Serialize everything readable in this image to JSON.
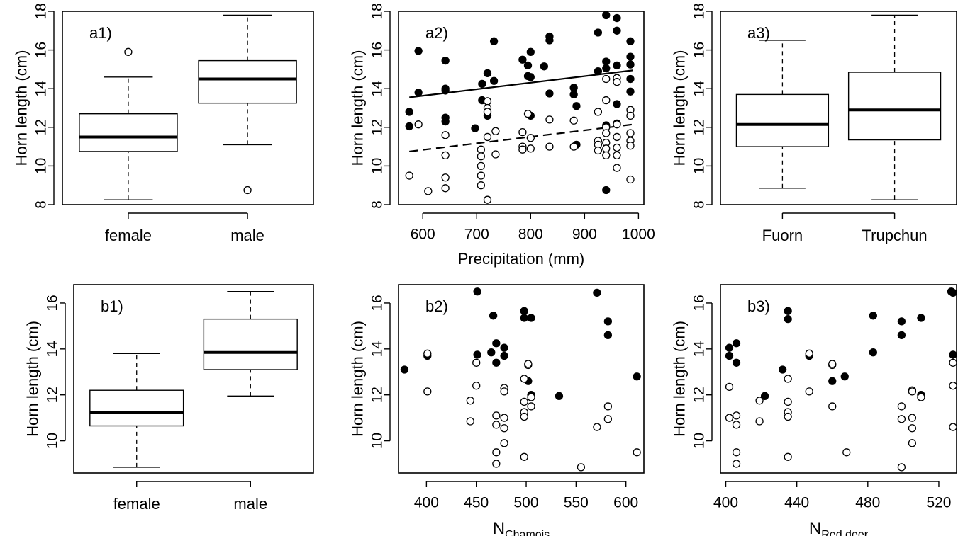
{
  "chart_data": [
    {
      "id": "a1",
      "type": "box",
      "panel_label": "a1)",
      "ylabel": "Horn length (cm)",
      "xlabel": "",
      "ylim": [
        8,
        18
      ],
      "yticks": [
        8,
        10,
        12,
        14,
        16,
        18
      ],
      "categories": [
        "female",
        "male"
      ],
      "boxes": [
        {
          "name": "female",
          "whisker_low": 8.25,
          "q1": 10.75,
          "median": 11.5,
          "q3": 12.7,
          "whisker_high": 14.6,
          "outliers": [
            15.9
          ]
        },
        {
          "name": "male",
          "whisker_low": 11.1,
          "q1": 13.25,
          "median": 14.5,
          "q3": 15.45,
          "whisker_high": 17.8,
          "outliers": [
            8.75
          ]
        }
      ]
    },
    {
      "id": "a2",
      "type": "scatter",
      "panel_label": "a2)",
      "ylabel": "Horn length (cm)",
      "xlabel": "Precipitation (mm)",
      "xlim": [
        555,
        1010
      ],
      "ylim": [
        8,
        18
      ],
      "xticks": [
        600,
        700,
        800,
        900,
        1000
      ],
      "yticks": [
        8,
        10,
        12,
        14,
        16,
        18
      ],
      "series": [
        {
          "style": "filled",
          "points": [
            [
              575,
              12.8
            ],
            [
              575,
              12.05
            ],
            [
              592,
              15.95
            ],
            [
              592,
              13.8
            ],
            [
              642,
              15.45
            ],
            [
              642,
              14
            ],
            [
              642,
              13.9
            ],
            [
              642,
              12.5
            ],
            [
              642,
              12.3
            ],
            [
              697,
              11.95
            ],
            [
              710,
              14.25
            ],
            [
              710,
              13.4
            ],
            [
              720,
              14.8
            ],
            [
              720,
              12.6
            ],
            [
              732,
              16.45
            ],
            [
              732,
              14.4
            ],
            [
              785,
              15.5
            ],
            [
              795,
              14.65
            ],
            [
              795,
              15.2
            ],
            [
              800,
              15.9
            ],
            [
              800,
              14.6
            ],
            [
              800,
              12.6
            ],
            [
              825,
              15.15
            ],
            [
              835,
              16.7
            ],
            [
              835,
              16.5
            ],
            [
              835,
              13.75
            ],
            [
              880,
              14.05
            ],
            [
              880,
              13.7
            ],
            [
              885,
              13.1
            ],
            [
              885,
              11.1
            ],
            [
              925,
              16.9
            ],
            [
              925,
              14.9
            ],
            [
              940,
              17.8
            ],
            [
              940,
              15.4
            ],
            [
              940,
              15.05
            ],
            [
              940,
              12.1
            ],
            [
              940,
              8.75
            ],
            [
              960,
              17.65
            ],
            [
              960,
              17
            ],
            [
              960,
              15.2
            ],
            [
              960,
              13.2
            ],
            [
              960,
              12.2
            ],
            [
              985,
              16.45
            ],
            [
              985,
              15.65
            ],
            [
              985,
              15.25
            ],
            [
              985,
              14.5
            ],
            [
              985,
              13.85
            ]
          ]
        },
        {
          "style": "open",
          "points": [
            [
              575,
              9.5
            ],
            [
              592,
              12.15
            ],
            [
              610,
              8.7
            ],
            [
              642,
              9.4
            ],
            [
              642,
              8.85
            ],
            [
              642,
              10.55
            ],
            [
              642,
              11.6
            ],
            [
              708,
              10.85
            ],
            [
              708,
              10.5
            ],
            [
              708,
              10.0
            ],
            [
              708,
              9.5
            ],
            [
              708,
              9.0
            ],
            [
              720,
              13.35
            ],
            [
              720,
              13.0
            ],
            [
              720,
              12.8
            ],
            [
              720,
              11.5
            ],
            [
              720,
              8.25
            ],
            [
              735,
              11.8
            ],
            [
              735,
              10.6
            ],
            [
              785,
              11.75
            ],
            [
              785,
              11.0
            ],
            [
              785,
              10.85
            ],
            [
              795,
              12.7
            ],
            [
              800,
              11.45
            ],
            [
              800,
              10.9
            ],
            [
              835,
              12.4
            ],
            [
              835,
              11.0
            ],
            [
              880,
              12.35
            ],
            [
              880,
              11.0
            ],
            [
              925,
              12.8
            ],
            [
              925,
              11.3
            ],
            [
              925,
              11.1
            ],
            [
              925,
              10.8
            ],
            [
              940,
              14.5
            ],
            [
              940,
              13.4
            ],
            [
              940,
              12.0
            ],
            [
              940,
              11.7
            ],
            [
              940,
              11.2
            ],
            [
              940,
              10.9
            ],
            [
              940,
              10.55
            ],
            [
              960,
              14.55
            ],
            [
              960,
              14.35
            ],
            [
              960,
              12.15
            ],
            [
              960,
              11.5
            ],
            [
              960,
              10.95
            ],
            [
              960,
              10.55
            ],
            [
              960,
              9.9
            ],
            [
              985,
              12.9
            ],
            [
              985,
              12.6
            ],
            [
              985,
              11.7
            ],
            [
              985,
              11.3
            ],
            [
              985,
              11.05
            ],
            [
              985,
              9.3
            ]
          ]
        }
      ],
      "fit_lines": [
        {
          "style": "solid",
          "x": [
            575,
            990
          ],
          "y": [
            13.55,
            14.95
          ]
        },
        {
          "style": "dashed",
          "x": [
            575,
            990
          ],
          "y": [
            10.75,
            12.15
          ]
        }
      ]
    },
    {
      "id": "a3",
      "type": "box",
      "panel_label": "a3)",
      "ylabel": "Horn length (cm)",
      "xlabel": "",
      "ylim": [
        8,
        18
      ],
      "yticks": [
        8,
        10,
        12,
        14,
        16,
        18
      ],
      "categories": [
        "Fuorn",
        "Trupchun"
      ],
      "boxes": [
        {
          "name": "Fuorn",
          "whisker_low": 8.85,
          "q1": 11.0,
          "median": 12.15,
          "q3": 13.7,
          "whisker_high": 16.5,
          "outliers": []
        },
        {
          "name": "Trupchun",
          "whisker_low": 8.25,
          "q1": 11.35,
          "median": 12.9,
          "q3": 14.85,
          "whisker_high": 17.8,
          "outliers": []
        }
      ]
    },
    {
      "id": "b1",
      "type": "box",
      "panel_label": "b1)",
      "ylabel": "Horn length (cm)",
      "xlabel": "",
      "ylim": [
        8.6,
        16.8
      ],
      "yticks": [
        10,
        12,
        14,
        16
      ],
      "categories": [
        "female",
        "male"
      ],
      "boxes": [
        {
          "name": "female",
          "whisker_low": 8.85,
          "q1": 10.65,
          "median": 11.25,
          "q3": 12.2,
          "whisker_high": 13.8,
          "outliers": []
        },
        {
          "name": "male",
          "whisker_low": 11.95,
          "q1": 13.1,
          "median": 13.85,
          "q3": 15.3,
          "whisker_high": 16.5,
          "outliers": []
        }
      ]
    },
    {
      "id": "b2",
      "type": "scatter",
      "panel_label": "b2)",
      "ylabel": "Horn length (cm)",
      "xlabel_main": "N",
      "xlabel_sub": "Chamois",
      "xlim": [
        372,
        618
      ],
      "ylim": [
        8.6,
        16.8
      ],
      "xticks": [
        400,
        450,
        500,
        550,
        600
      ],
      "yticks": [
        10,
        12,
        14,
        16
      ],
      "series": [
        {
          "style": "filled",
          "points": [
            [
              378,
              13.1
            ],
            [
              401,
              13.7
            ],
            [
              451,
              16.5
            ],
            [
              451,
              13.75
            ],
            [
              465,
              13.85
            ],
            [
              467,
              15.45
            ],
            [
              470,
              14.25
            ],
            [
              470,
              13.4
            ],
            [
              478,
              14.05
            ],
            [
              478,
              13.7
            ],
            [
              498,
              15.65
            ],
            [
              498,
              15.35
            ],
            [
              502,
              12.6
            ],
            [
              505,
              12.0
            ],
            [
              505,
              15.35
            ],
            [
              533,
              11.95
            ],
            [
              571,
              16.45
            ],
            [
              582,
              15.2
            ],
            [
              582,
              14.6
            ],
            [
              611,
              12.8
            ]
          ]
        },
        {
          "style": "open",
          "points": [
            [
              401,
              13.8
            ],
            [
              401,
              12.15
            ],
            [
              450,
              13.4
            ],
            [
              450,
              12.4
            ],
            [
              444,
              11.75
            ],
            [
              444,
              10.85
            ],
            [
              470,
              11.1
            ],
            [
              470,
              10.7
            ],
            [
              470,
              9.5
            ],
            [
              470,
              9.0
            ],
            [
              478,
              12.3
            ],
            [
              478,
              12.15
            ],
            [
              478,
              11.0
            ],
            [
              478,
              10.55
            ],
            [
              478,
              9.9
            ],
            [
              498,
              12.7
            ],
            [
              498,
              11.7
            ],
            [
              498,
              11.25
            ],
            [
              498,
              11.05
            ],
            [
              498,
              9.3
            ],
            [
              502,
              13.3
            ],
            [
              502,
              13.35
            ],
            [
              505,
              11.9
            ],
            [
              505,
              11.5
            ],
            [
              555,
              8.85
            ],
            [
              571,
              10.6
            ],
            [
              582,
              11.5
            ],
            [
              582,
              10.95
            ],
            [
              611,
              9.5
            ]
          ]
        }
      ]
    },
    {
      "id": "b3",
      "type": "scatter",
      "panel_label": "b3)",
      "ylabel": "Horn length (cm)",
      "xlabel_main": "N",
      "xlabel_sub": "Red deer",
      "xlim": [
        397,
        530
      ],
      "ylim": [
        8.6,
        16.8
      ],
      "xticks": [
        400,
        440,
        480,
        520
      ],
      "yticks": [
        10,
        12,
        14,
        16
      ],
      "series": [
        {
          "style": "filled",
          "points": [
            [
              402,
              14.05
            ],
            [
              402,
              13.7
            ],
            [
              406,
              14.25
            ],
            [
              406,
              13.4
            ],
            [
              422,
              11.95
            ],
            [
              432,
              13.1
            ],
            [
              435,
              15.65
            ],
            [
              435,
              15.3
            ],
            [
              447,
              13.7
            ],
            [
              460,
              12.6
            ],
            [
              467,
              12.8
            ],
            [
              483,
              15.45
            ],
            [
              483,
              13.85
            ],
            [
              499,
              15.2
            ],
            [
              499,
              14.6
            ],
            [
              510,
              15.35
            ],
            [
              510,
              12.0
            ],
            [
              527,
              16.5
            ],
            [
              528,
              16.45
            ],
            [
              528,
              13.75
            ]
          ]
        },
        {
          "style": "open",
          "points": [
            [
              402,
              12.35
            ],
            [
              402,
              11.0
            ],
            [
              406,
              11.1
            ],
            [
              406,
              10.7
            ],
            [
              406,
              9.5
            ],
            [
              406,
              9.0
            ],
            [
              419,
              11.75
            ],
            [
              419,
              10.85
            ],
            [
              435,
              12.7
            ],
            [
              435,
              11.7
            ],
            [
              435,
              11.25
            ],
            [
              435,
              11.05
            ],
            [
              435,
              9.3
            ],
            [
              447,
              13.8
            ],
            [
              447,
              12.15
            ],
            [
              460,
              13.3
            ],
            [
              460,
              13.35
            ],
            [
              460,
              11.5
            ],
            [
              468,
              9.5
            ],
            [
              499,
              11.5
            ],
            [
              499,
              10.95
            ],
            [
              499,
              8.85
            ],
            [
              505,
              12.2
            ],
            [
              505,
              12.15
            ],
            [
              505,
              11.0
            ],
            [
              505,
              10.55
            ],
            [
              505,
              9.9
            ],
            [
              510,
              11.9
            ],
            [
              528,
              13.4
            ],
            [
              528,
              12.4
            ],
            [
              528,
              10.6
            ]
          ]
        }
      ]
    }
  ]
}
